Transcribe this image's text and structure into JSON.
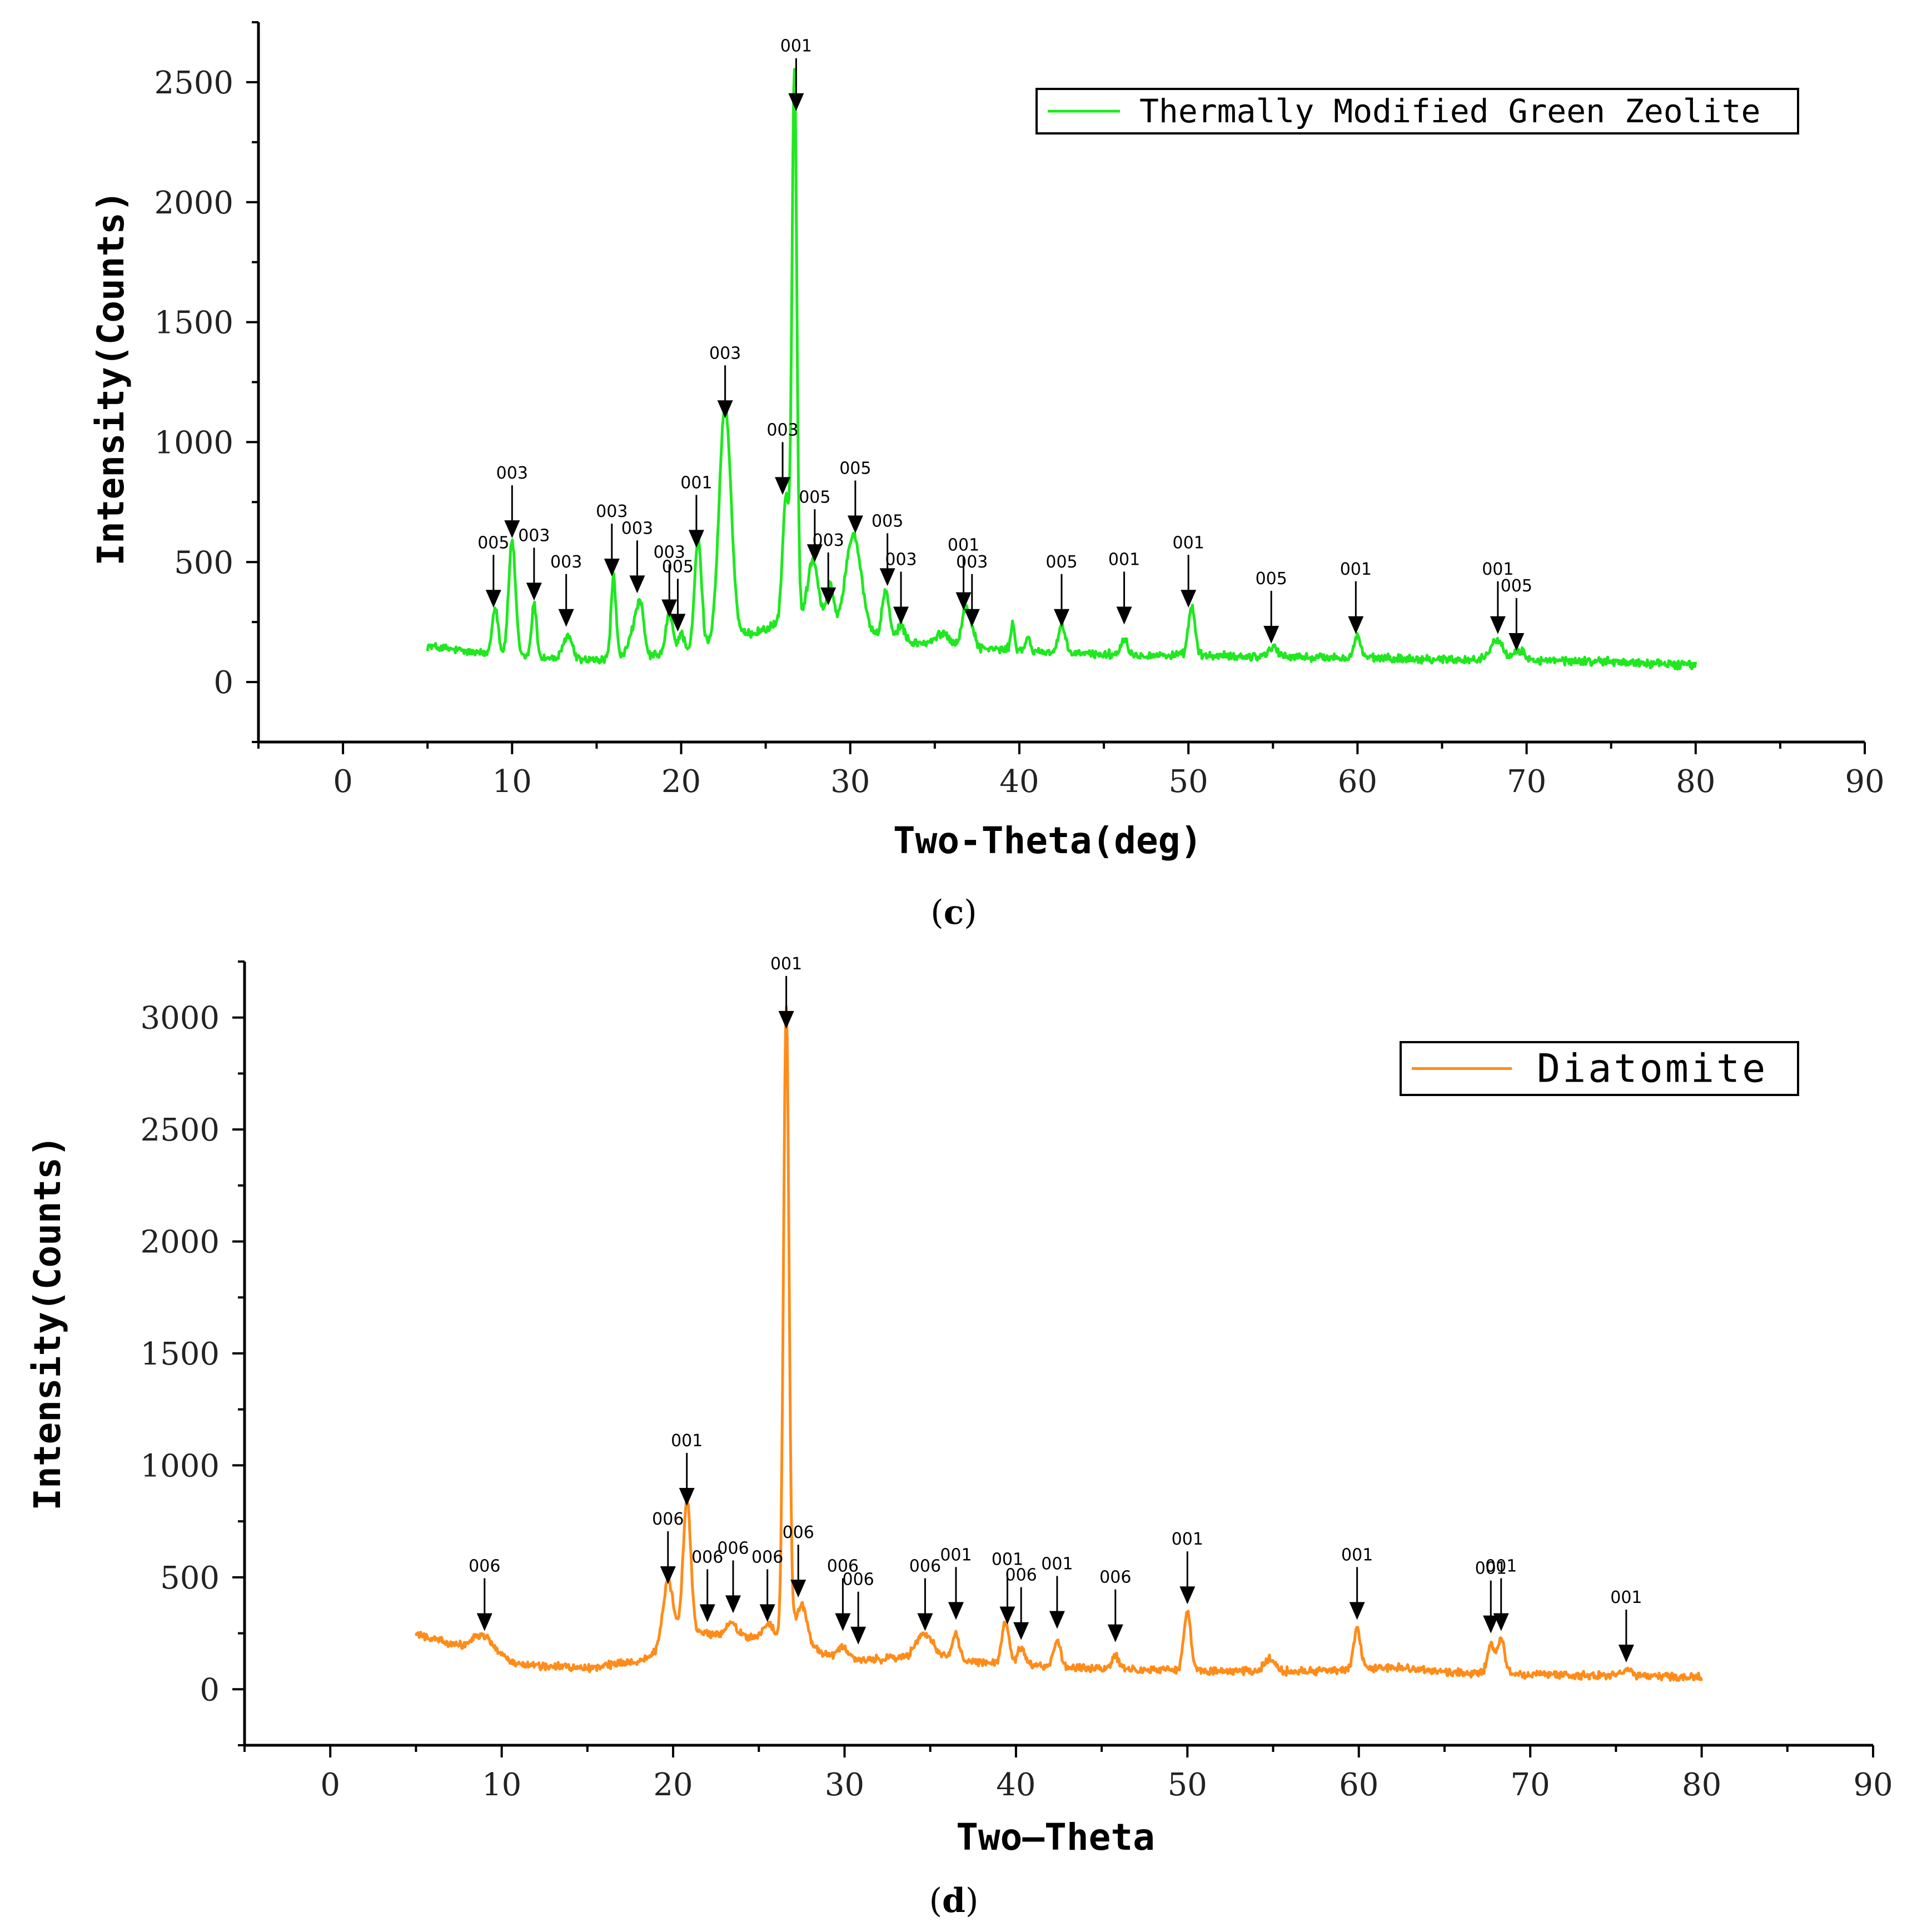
{
  "chart_data": [
    {
      "type": "line",
      "panel_label": {
        "open": "(",
        "letter": "c",
        "close": ")"
      },
      "xlabel": "Two-Theta(deg)",
      "ylabel": "Intensity(Counts)",
      "xlim": [
        -5,
        90
      ],
      "ylim": [
        -250,
        2750
      ],
      "xticks": [
        0,
        10,
        20,
        30,
        40,
        50,
        60,
        70,
        80,
        90
      ],
      "yticks": [
        0,
        500,
        1000,
        1500,
        2000,
        2500
      ],
      "legend": {
        "label": "Thermally Modified Green Zeolite",
        "position": "top-right"
      },
      "color": "#1fe81f",
      "series": [
        {
          "name": "Thermally Modified Green Zeolite",
          "x_start": 5,
          "x_end": 80,
          "baseline": [
            [
              5,
              150
            ],
            [
              8,
              120
            ],
            [
              12,
              100
            ],
            [
              15,
              90
            ],
            [
              20,
              120
            ],
            [
              23,
              180
            ],
            [
              25,
              220
            ],
            [
              27,
              280
            ],
            [
              30,
              220
            ],
            [
              33,
              170
            ],
            [
              36,
              150
            ],
            [
              40,
              130
            ],
            [
              45,
              115
            ],
            [
              50,
              110
            ],
            [
              55,
              105
            ],
            [
              60,
              100
            ],
            [
              65,
              95
            ],
            [
              70,
              90
            ],
            [
              75,
              85
            ],
            [
              80,
              70
            ]
          ],
          "peaks": [
            [
              9.0,
              200,
              0.18
            ],
            [
              10.0,
              480,
              0.2
            ],
            [
              11.3,
              220,
              0.15
            ],
            [
              13.3,
              100,
              0.25
            ],
            [
              16.0,
              340,
              0.15
            ],
            [
              17.2,
              120,
              0.3
            ],
            [
              17.6,
              180,
              0.2
            ],
            [
              19.3,
              170,
              0.2
            ],
            [
              20.0,
              80,
              0.2
            ],
            [
              21.0,
              460,
              0.2
            ],
            [
              22.6,
              980,
              0.35
            ],
            [
              26.2,
              520,
              0.2
            ],
            [
              26.7,
              2280,
              0.14
            ],
            [
              27.8,
              250,
              0.3
            ],
            [
              28.8,
              160,
              0.2
            ],
            [
              30.2,
              400,
              0.45
            ],
            [
              32.1,
              200,
              0.2
            ],
            [
              33.0,
              70,
              0.2
            ],
            [
              35.5,
              50,
              0.4
            ],
            [
              36.8,
              150,
              0.22
            ],
            [
              37.2,
              70,
              0.2
            ],
            [
              39.6,
              110,
              0.12
            ],
            [
              40.5,
              50,
              0.15
            ],
            [
              42.5,
              110,
              0.2
            ],
            [
              46.2,
              70,
              0.2
            ],
            [
              50.2,
              200,
              0.2
            ],
            [
              55.0,
              40,
              0.3
            ],
            [
              60.0,
              90,
              0.2
            ],
            [
              68.2,
              90,
              0.35
            ],
            [
              69.6,
              40,
              0.3
            ]
          ]
        }
      ],
      "annotations": [
        {
          "x": 8.9,
          "y": 310,
          "label": "005"
        },
        {
          "x": 10.0,
          "y": 600,
          "label": "003"
        },
        {
          "x": 11.3,
          "y": 340,
          "label": "003"
        },
        {
          "x": 13.2,
          "y": 230,
          "label": "003"
        },
        {
          "x": 15.9,
          "y": 440,
          "label": "003"
        },
        {
          "x": 17.4,
          "y": 370,
          "label": "003"
        },
        {
          "x": 19.3,
          "y": 270,
          "label": "003"
        },
        {
          "x": 19.8,
          "y": 210,
          "label": "005"
        },
        {
          "x": 20.9,
          "y": 560,
          "label": "001"
        },
        {
          "x": 22.6,
          "y": 1100,
          "label": "003"
        },
        {
          "x": 26.0,
          "y": 780,
          "label": "003"
        },
        {
          "x": 26.8,
          "y": 2380,
          "label": "001"
        },
        {
          "x": 27.9,
          "y": 500,
          "label": "005"
        },
        {
          "x": 28.7,
          "y": 320,
          "label": "003"
        },
        {
          "x": 30.3,
          "y": 620,
          "label": "005"
        },
        {
          "x": 32.2,
          "y": 400,
          "label": "005"
        },
        {
          "x": 33.0,
          "y": 240,
          "label": "003"
        },
        {
          "x": 36.7,
          "y": 300,
          "label": "001"
        },
        {
          "x": 37.2,
          "y": 230,
          "label": "003"
        },
        {
          "x": 42.5,
          "y": 230,
          "label": "005"
        },
        {
          "x": 46.2,
          "y": 240,
          "label": "001"
        },
        {
          "x": 50.0,
          "y": 310,
          "label": "001"
        },
        {
          "x": 54.9,
          "y": 160,
          "label": "005"
        },
        {
          "x": 59.9,
          "y": 200,
          "label": "001"
        },
        {
          "x": 68.3,
          "y": 200,
          "label": "001"
        },
        {
          "x": 69.4,
          "y": 130,
          "label": "005"
        }
      ]
    },
    {
      "type": "line",
      "panel_label": {
        "open": "(",
        "letter": "d",
        "close": ")"
      },
      "xlabel": "Two—Theta",
      "ylabel": "Intensity(Counts)",
      "xlim": [
        -5,
        90
      ],
      "ylim": [
        -250,
        3250
      ],
      "xticks": [
        0,
        10,
        20,
        30,
        40,
        50,
        60,
        70,
        80,
        90
      ],
      "yticks": [
        0,
        500,
        1000,
        1500,
        2000,
        2500,
        3000
      ],
      "legend": {
        "label": "Diatomite",
        "position": "top-right"
      },
      "color": "#ff8c1a",
      "series": [
        {
          "name": "Diatomite",
          "x_start": 5,
          "x_end": 80,
          "baseline": [
            [
              5,
              250
            ],
            [
              7,
              200
            ],
            [
              9,
              170
            ],
            [
              11,
              110
            ],
            [
              15,
              95
            ],
            [
              18,
              130
            ],
            [
              19,
              160
            ],
            [
              21,
              260
            ],
            [
              23,
              240
            ],
            [
              25,
              230
            ],
            [
              27,
              240
            ],
            [
              29,
              150
            ],
            [
              31,
              130
            ],
            [
              34,
              140
            ],
            [
              36,
              140
            ],
            [
              38,
              120
            ],
            [
              42,
              100
            ],
            [
              46,
              90
            ],
            [
              50,
              85
            ],
            [
              55,
              80
            ],
            [
              60,
              85
            ],
            [
              62,
              100
            ],
            [
              65,
              75
            ],
            [
              70,
              65
            ],
            [
              75,
              60
            ],
            [
              80,
              55
            ]
          ],
          "peaks": [
            [
              8.9,
              70,
              0.6
            ],
            [
              19.7,
              290,
              0.3
            ],
            [
              20.8,
              600,
              0.22
            ],
            [
              23.4,
              60,
              0.3
            ],
            [
              25.5,
              60,
              0.3
            ],
            [
              26.6,
              2820,
              0.16
            ],
            [
              27.5,
              160,
              0.3
            ],
            [
              29.9,
              50,
              0.3
            ],
            [
              34.7,
              110,
              0.5
            ],
            [
              36.5,
              110,
              0.2
            ],
            [
              39.4,
              190,
              0.2
            ],
            [
              40.3,
              80,
              0.2
            ],
            [
              42.4,
              120,
              0.2
            ],
            [
              45.8,
              60,
              0.2
            ],
            [
              50.0,
              260,
              0.2
            ],
            [
              54.8,
              60,
              0.3
            ],
            [
              59.9,
              190,
              0.2
            ],
            [
              67.7,
              130,
              0.2
            ],
            [
              68.3,
              150,
              0.22
            ],
            [
              75.6,
              30,
              0.3
            ]
          ]
        }
      ],
      "annotations": [
        {
          "x": 9.0,
          "y": 260,
          "label": "006"
        },
        {
          "x": 19.7,
          "y": 470,
          "label": "006"
        },
        {
          "x": 20.8,
          "y": 820,
          "label": "001"
        },
        {
          "x": 22.0,
          "y": 300,
          "label": "006"
        },
        {
          "x": 23.5,
          "y": 340,
          "label": "006"
        },
        {
          "x": 25.5,
          "y": 300,
          "label": "006"
        },
        {
          "x": 26.6,
          "y": 2950,
          "label": "001"
        },
        {
          "x": 27.3,
          "y": 410,
          "label": "006"
        },
        {
          "x": 29.9,
          "y": 260,
          "label": "006"
        },
        {
          "x": 30.8,
          "y": 200,
          "label": "006"
        },
        {
          "x": 34.7,
          "y": 260,
          "label": "006"
        },
        {
          "x": 36.5,
          "y": 310,
          "label": "001"
        },
        {
          "x": 39.5,
          "y": 290,
          "label": "001"
        },
        {
          "x": 40.3,
          "y": 220,
          "label": "006"
        },
        {
          "x": 42.4,
          "y": 270,
          "label": "001"
        },
        {
          "x": 45.8,
          "y": 210,
          "label": "006"
        },
        {
          "x": 50.0,
          "y": 380,
          "label": "001"
        },
        {
          "x": 59.9,
          "y": 310,
          "label": "001"
        },
        {
          "x": 67.7,
          "y": 250,
          "label": "001"
        },
        {
          "x": 68.3,
          "y": 260,
          "label": "001"
        },
        {
          "x": 75.6,
          "y": 120,
          "label": "001"
        }
      ]
    }
  ]
}
